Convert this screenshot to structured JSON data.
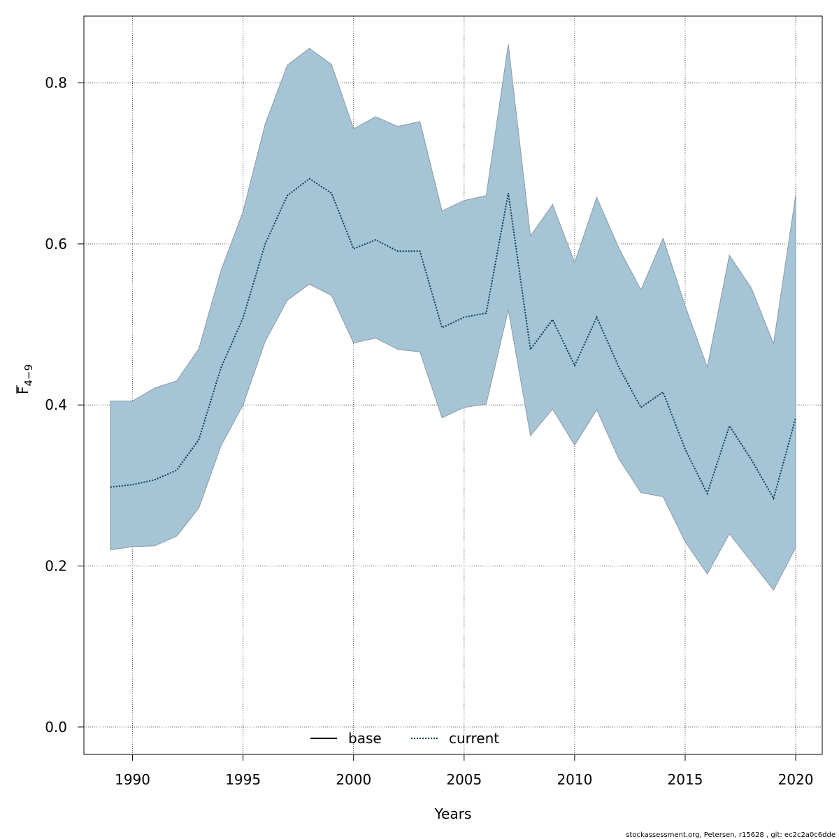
{
  "chart_data": {
    "type": "area",
    "xlabel": "Years",
    "ylabel": {
      "base": "F",
      "subscript": "4−9"
    },
    "xlim": [
      1987.8,
      2021.2
    ],
    "ylim": [
      -0.034,
      0.883
    ],
    "x_ticks": [
      "1990",
      "1995",
      "2000",
      "2005",
      "2010",
      "2015",
      "2020"
    ],
    "y_ticks": [
      "0.0",
      "0.2",
      "0.4",
      "0.6",
      "0.8"
    ],
    "grid": true,
    "legend": {
      "position": "bottom-center",
      "entries": [
        "base",
        "current"
      ]
    },
    "colors": {
      "band_fill": "#a5c4d5",
      "band_stroke": "#8b9aa5",
      "current_line": "#0b3d5c",
      "base_line": "#000000",
      "grid": "#555555"
    },
    "x": [
      1989,
      1990,
      1991,
      1992,
      1993,
      1994,
      1995,
      1996,
      1997,
      1998,
      1999,
      2000,
      2001,
      2002,
      2003,
      2004,
      2005,
      2006,
      2007,
      2008,
      2009,
      2010,
      2011,
      2012,
      2013,
      2014,
      2015,
      2016,
      2017,
      2018,
      2019,
      2020
    ],
    "series": [
      {
        "name": "current",
        "style": "dotted",
        "values": [
          0.298,
          0.301,
          0.307,
          0.319,
          0.357,
          0.446,
          0.508,
          0.6,
          0.66,
          0.681,
          0.663,
          0.594,
          0.605,
          0.591,
          0.591,
          0.496,
          0.509,
          0.514,
          0.663,
          0.469,
          0.506,
          0.449,
          0.509,
          0.447,
          0.397,
          0.416,
          0.345,
          0.29,
          0.374,
          0.332,
          0.284,
          0.384
        ],
        "lower": [
          0.22,
          0.224,
          0.225,
          0.237,
          0.272,
          0.349,
          0.4,
          0.479,
          0.53,
          0.55,
          0.536,
          0.477,
          0.483,
          0.469,
          0.466,
          0.384,
          0.397,
          0.401,
          0.518,
          0.362,
          0.395,
          0.35,
          0.394,
          0.333,
          0.291,
          0.286,
          0.23,
          0.19,
          0.24,
          0.205,
          0.17,
          0.223
        ],
        "upper": [
          0.405,
          0.405,
          0.421,
          0.43,
          0.47,
          0.567,
          0.64,
          0.749,
          0.822,
          0.843,
          0.823,
          0.743,
          0.758,
          0.746,
          0.752,
          0.641,
          0.654,
          0.66,
          0.848,
          0.61,
          0.649,
          0.577,
          0.658,
          0.595,
          0.543,
          0.607,
          0.523,
          0.447,
          0.586,
          0.545,
          0.476,
          0.661
        ]
      }
    ]
  },
  "footer": "stockassessment.org, Petersen, r15628 , git: ec2c2a0c6dde"
}
